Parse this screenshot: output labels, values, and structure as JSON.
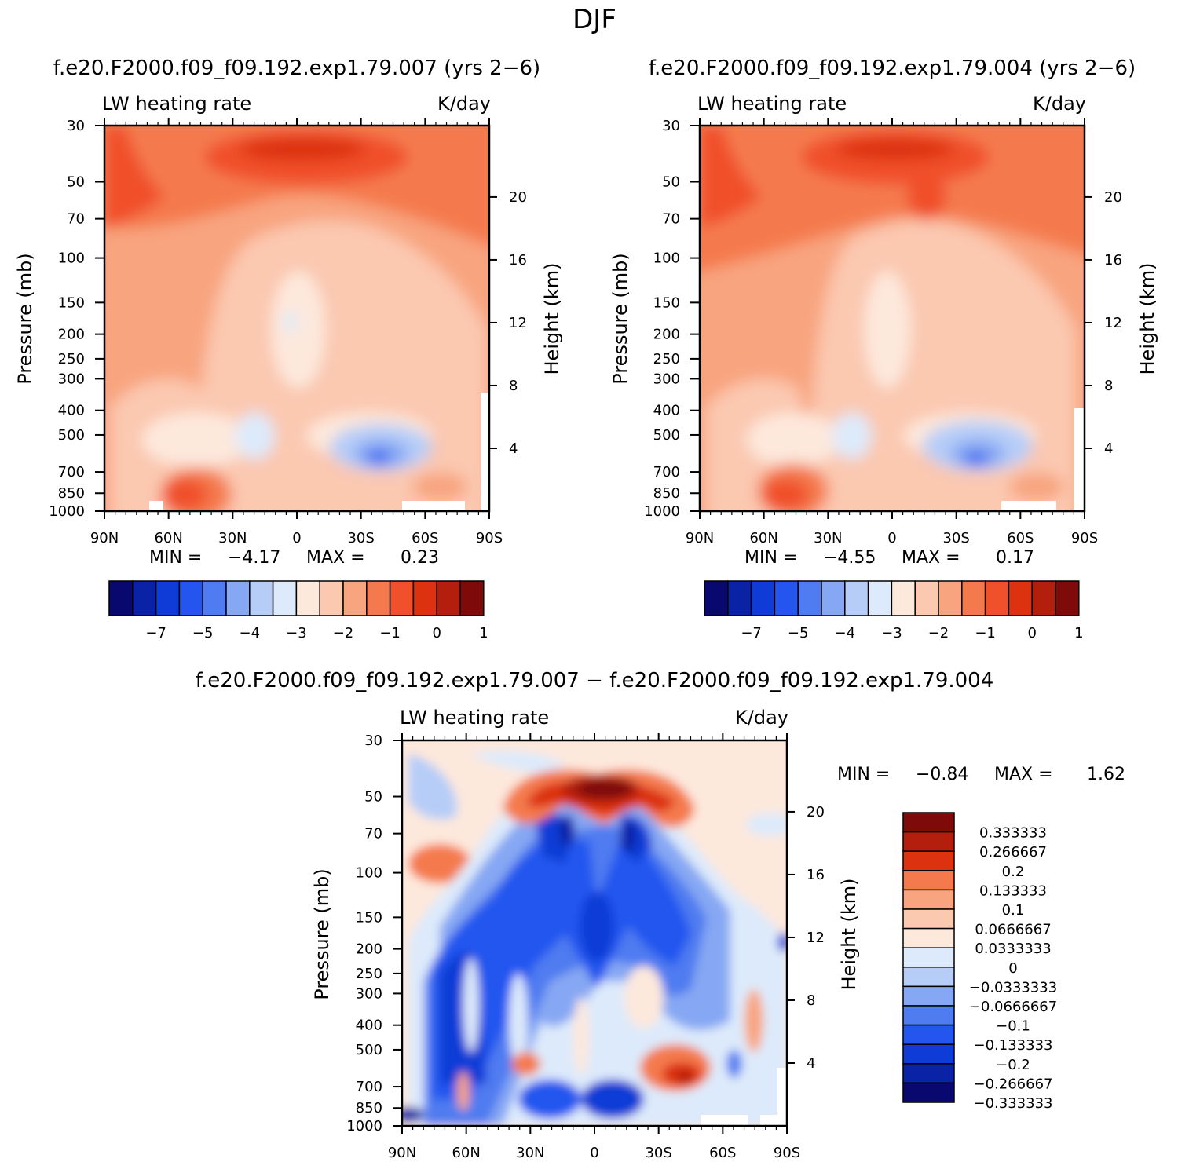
{
  "figure": {
    "title": "DJF",
    "left_case_title": "f.e20.F2000.f09_f09.192.exp1.79.007 (yrs 2−6)",
    "right_case_title": "f.e20.F2000.f09_f09.192.exp1.79.004 (yrs 2−6)",
    "diff_title": "f.e20.F2000.f09_f09.192.exp1.79.007 − f.e20.F2000.f09_f09.192.exp1.79.004"
  },
  "chart_data": [
    {
      "id": "left",
      "type": "heatmap",
      "title_left": "LW heating rate",
      "title_right": "K/day",
      "ylabel": "Pressure (mb)",
      "ylabel_right": "Height (km)",
      "x_ticks": [
        "90N",
        "60N",
        "30N",
        "0",
        "30S",
        "60S",
        "90S"
      ],
      "y_ticks": [
        "30",
        "50",
        "70",
        "100",
        "150",
        "200",
        "250",
        "300",
        "400",
        "500",
        "700",
        "850",
        "1000"
      ],
      "height_ticks": [
        "20",
        "16",
        "12",
        "8",
        "4"
      ],
      "min_label": "MIN =",
      "min_value": "−4.17",
      "max_label": "MAX =",
      "max_value": "0.23",
      "colorbar_labels": [
        "−7",
        "−5",
        "−4",
        "−3",
        "−2",
        "−1",
        "0",
        "1"
      ]
    },
    {
      "id": "right",
      "type": "heatmap",
      "title_left": "LW heating rate",
      "title_right": "K/day",
      "ylabel": "Pressure (mb)",
      "ylabel_right": "Height (km)",
      "x_ticks": [
        "90N",
        "60N",
        "30N",
        "0",
        "30S",
        "60S",
        "90S"
      ],
      "y_ticks": [
        "30",
        "50",
        "70",
        "100",
        "150",
        "200",
        "250",
        "300",
        "400",
        "500",
        "700",
        "850",
        "1000"
      ],
      "height_ticks": [
        "20",
        "16",
        "12",
        "8",
        "4"
      ],
      "min_label": "MIN =",
      "min_value": "−4.55",
      "max_label": "MAX =",
      "max_value": "0.17",
      "colorbar_labels": [
        "−7",
        "−5",
        "−4",
        "−3",
        "−2",
        "−1",
        "0",
        "1"
      ]
    },
    {
      "id": "diff",
      "type": "heatmap",
      "title_left": "LW heating rate",
      "title_right": "K/day",
      "ylabel": "Pressure (mb)",
      "ylabel_right": "Height (km)",
      "x_ticks": [
        "90N",
        "60N",
        "30N",
        "0",
        "30S",
        "60S",
        "90S"
      ],
      "y_ticks": [
        "30",
        "50",
        "70",
        "100",
        "150",
        "200",
        "250",
        "300",
        "400",
        "500",
        "700",
        "850",
        "1000"
      ],
      "height_ticks": [
        "20",
        "16",
        "12",
        "8",
        "4"
      ],
      "min_label": "MIN =",
      "min_value": "−0.84",
      "max_label": "MAX =",
      "max_value": "1.62",
      "colorbar_labels": [
        "0.333333",
        "0.266667",
        "0.2",
        "0.133333",
        "0.1",
        "0.0666667",
        "0.0333333",
        "0",
        "−0.0333333",
        "−0.0666667",
        "−0.1",
        "−0.133333",
        "−0.2",
        "−0.266667",
        "−0.333333"
      ]
    }
  ],
  "colors": {
    "colorbar_main": [
      "#08086e",
      "#0a22a6",
      "#0f3cd6",
      "#2456ef",
      "#4f7cf0",
      "#86a7f3",
      "#b6cdf8",
      "#ddeafb",
      "#fde8dc",
      "#fbc8b0",
      "#f8a47f",
      "#f47a4d",
      "#f0502a",
      "#dc3210",
      "#b31f0c",
      "#7e0a0a"
    ],
    "colorbar_diff": [
      "#7e0a0a",
      "#b31f0c",
      "#dc3210",
      "#f47a4d",
      "#f8a47f",
      "#fbc8b0",
      "#fde8dc",
      "#ddeafb",
      "#b6cdf8",
      "#86a7f3",
      "#4f7cf0",
      "#2456ef",
      "#0f3cd6",
      "#0a22a6",
      "#08086e"
    ]
  }
}
